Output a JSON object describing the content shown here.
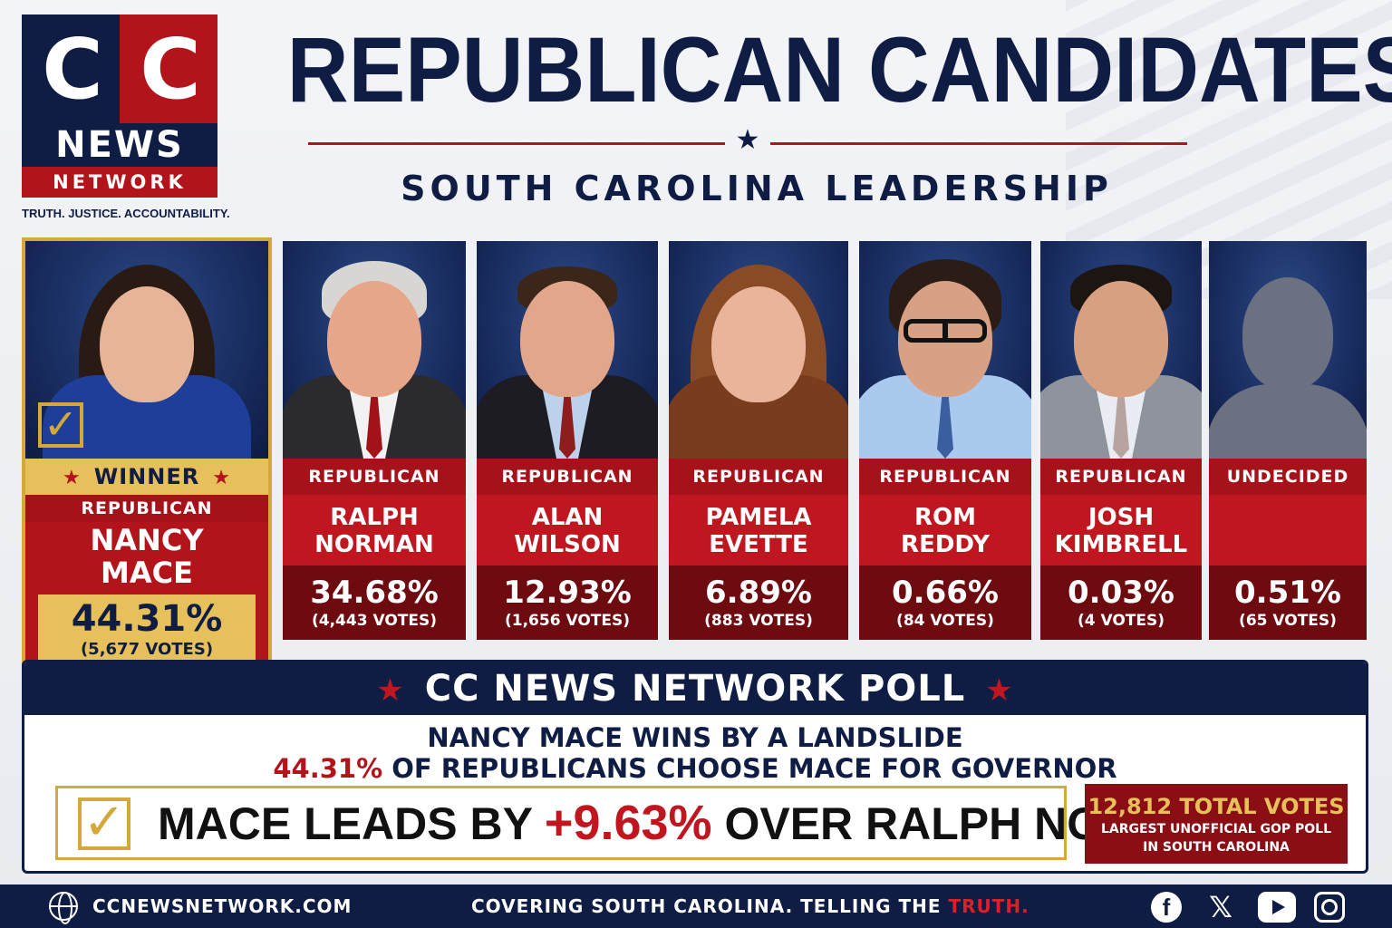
{
  "logo": {
    "cc1": "C",
    "cc2": "C",
    "news": "NEWS",
    "network": "NETWORK",
    "tagline": "TRUTH. JUSTICE. ACCOUNTABILITY."
  },
  "header": {
    "title": "REPUBLICAN CANDIDATES",
    "subtitle": "SOUTH CAROLINA LEADERSHIP"
  },
  "colors": {
    "navy": "#0f1d44",
    "red": "#b3131b",
    "dark_red": "#6e0b10",
    "gold": "#d4a93a"
  },
  "winner": {
    "badge": "WINNER",
    "party": "REPUBLICAN",
    "name_line1": "NANCY",
    "name_line2": "MACE",
    "percent": "44.31%",
    "votes": "(5,677 VOTES)",
    "icon": "check-icon"
  },
  "candidates": [
    {
      "party": "REPUBLICAN",
      "name_line1": "RALPH",
      "name_line2": "NORMAN",
      "percent": "34.68%",
      "votes": "(4,443 VOTES)"
    },
    {
      "party": "REPUBLICAN",
      "name_line1": "ALAN",
      "name_line2": "WILSON",
      "percent": "12.93%",
      "votes": "(1,656 VOTES)"
    },
    {
      "party": "REPUBLICAN",
      "name_line1": "PAMELA",
      "name_line2": "EVETTE",
      "percent": "6.89%",
      "votes": "(883 VOTES)"
    },
    {
      "party": "REPUBLICAN",
      "name_line1": "ROM",
      "name_line2": "REDDY",
      "percent": "0.66%",
      "votes": "(84 VOTES)"
    },
    {
      "party": "REPUBLICAN",
      "name_line1": "JOSH",
      "name_line2": "KIMBRELL",
      "percent": "0.03%",
      "votes": "(4 VOTES)"
    },
    {
      "party": "UNDECIDED",
      "name_line1": "",
      "name_line2": "",
      "percent": "0.51%",
      "votes": "(65 VOTES)"
    }
  ],
  "poll": {
    "title": "CC NEWS NETWORK POLL",
    "line1": "NANCY MACE WINS BY A LANDSLIDE",
    "line2_highlight": "44.31%",
    "line2_rest": " OF REPUBLICANS CHOOSE MACE FOR GOVERNOR",
    "lead_pre": "MACE LEADS BY ",
    "lead_value": "+9.63%",
    "lead_post": " OVER RALPH NORMAN",
    "total_votes": "12,812 TOTAL VOTES",
    "total_sub1": "LARGEST UNOFFICIAL GOP POLL",
    "total_sub2": "IN SOUTH CAROLINA"
  },
  "footer": {
    "site": "CCNEWSNETWORK.COM",
    "slogan_pre": "COVERING SOUTH CAROLINA. TELLING THE ",
    "slogan_highlight": "TRUTH.",
    "social": {
      "facebook": "f",
      "x": "𝕏"
    }
  }
}
